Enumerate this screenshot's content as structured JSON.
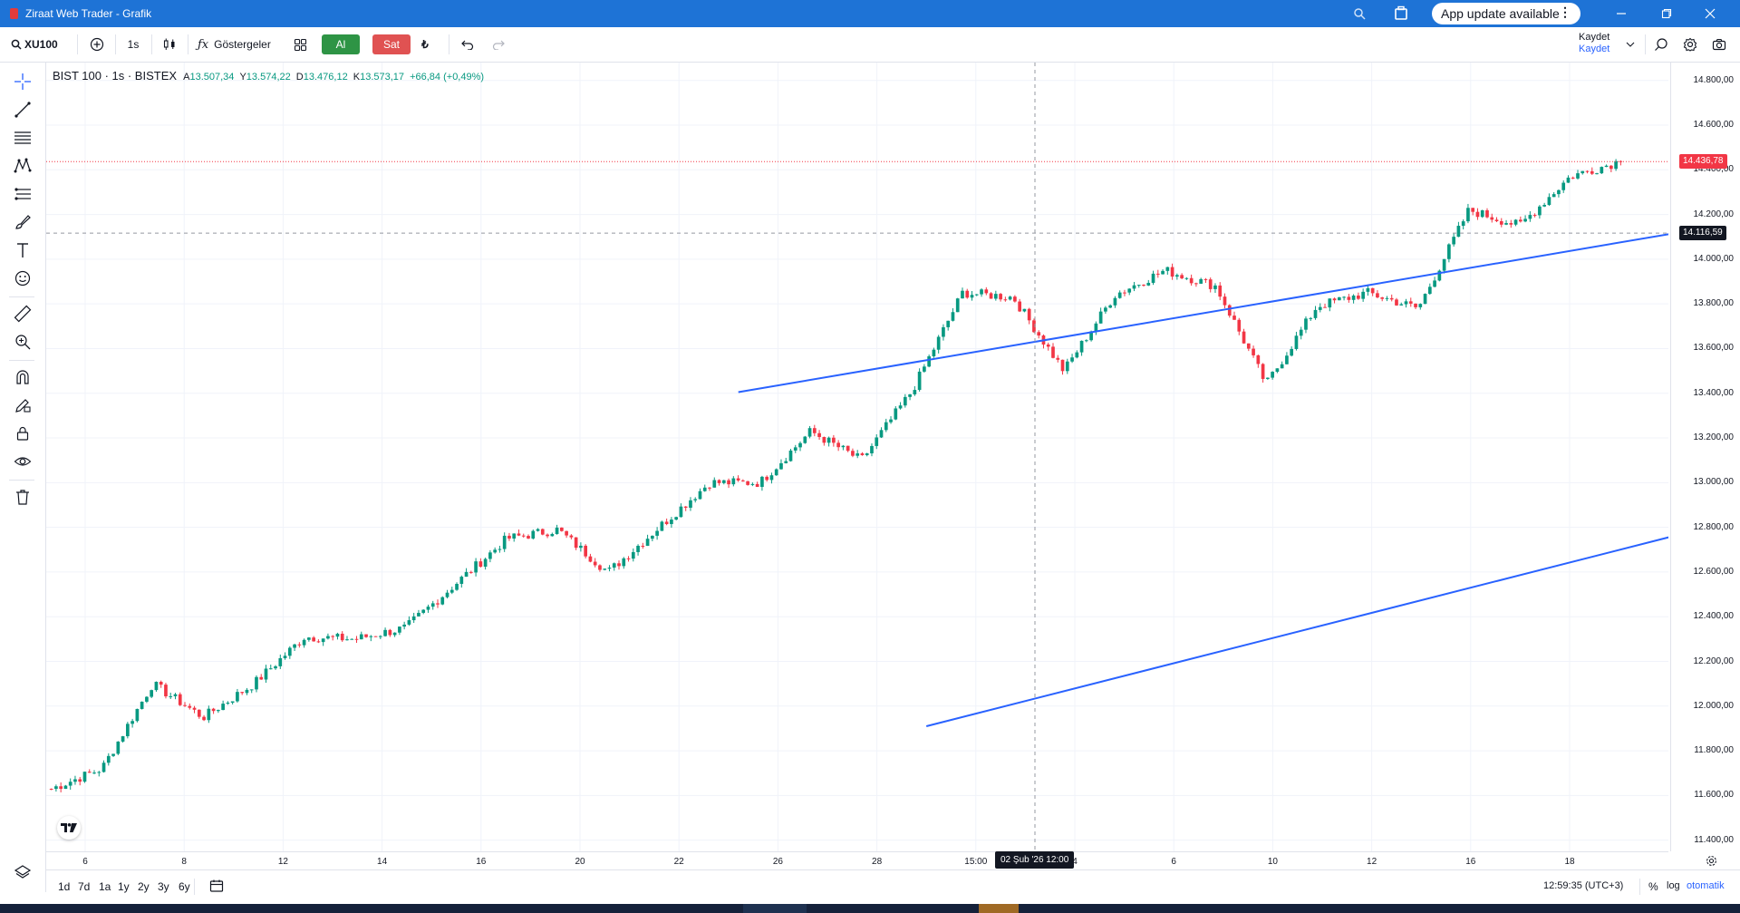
{
  "window": {
    "title": "Ziraat Web Trader - Grafik",
    "update_label": "App update available"
  },
  "toolbar": {
    "symbol": "XU100",
    "interval": "1s",
    "indicators_label": "Göstergeler",
    "buy_label": "Al",
    "sell_label": "Sat",
    "currency": "₺",
    "save_title": "Kaydet",
    "save_sub": "Kaydet"
  },
  "legend": {
    "symbol_line": "BIST 100 · 1s · BISTEX",
    "open_label": "A",
    "open": "13.507,34",
    "high_label": "Y",
    "high": "13.574,22",
    "low_label": "D",
    "low": "13.476,12",
    "close_label": "K",
    "close": "13.573,17",
    "change": "+66,84 (+0,49%)"
  },
  "price_axis": {
    "ticks": [
      "14.800,00",
      "14.600,00",
      "14.400,00",
      "14.200,00",
      "14.000,00",
      "13.800,00",
      "13.600,00",
      "13.400,00",
      "13.200,00",
      "13.000,00",
      "12.800,00",
      "12.600,00",
      "12.400,00",
      "12.200,00",
      "12.000,00",
      "11.800,00",
      "11.600,00",
      "11.400,00"
    ],
    "last_price": "14.436,78",
    "cursor_price": "14.116,59"
  },
  "time_axis": {
    "ticks": [
      "6",
      "8",
      "12",
      "14",
      "16",
      "20",
      "22",
      "26",
      "28",
      "15:00",
      "4",
      "6",
      "10",
      "12",
      "16",
      "18"
    ],
    "cursor_label": "02 Şub '26    12:00"
  },
  "bottom": {
    "ranges": [
      "1d",
      "7d",
      "1a",
      "1y",
      "2y",
      "3y",
      "6y"
    ],
    "clock": "12:59:35 (UTC+3)",
    "percent": "%",
    "log": "log",
    "auto": "otomatik"
  },
  "colors": {
    "up": "#089981",
    "down": "#f23645",
    "trendline": "#2962ff",
    "titlebar": "#1e73d6"
  },
  "chart_data": {
    "type": "candlestick",
    "series": [
      {
        "name": "BIST 100"
      }
    ],
    "ylim": [
      11350,
      14880
    ],
    "x": [
      "6",
      "8",
      "12",
      "14",
      "16",
      "20",
      "22",
      "26",
      "28",
      "15:00",
      "4",
      "6",
      "10",
      "12",
      "16",
      "18"
    ],
    "waypoints": [
      11630,
      11720,
      12100,
      11950,
      12100,
      12310,
      12300,
      12350,
      12550,
      12750,
      12790,
      12600,
      12800,
      13000,
      13000,
      13230,
      13100,
      13410,
      13850,
      13830,
      13500,
      13840,
      13950,
      13880,
      13440,
      13790,
      13850,
      13780,
      14220,
      14150,
      14370,
      14440
    ],
    "last_close": 14436.78,
    "crosshair_price": 14116.59,
    "trendlines": [
      {
        "from": [
          8.5,
          11910
        ],
        "to": [
          26.6,
          13950
        ]
      },
      {
        "from": [
          6.6,
          13405
        ],
        "to": [
          18.9,
          14330
        ]
      }
    ]
  }
}
